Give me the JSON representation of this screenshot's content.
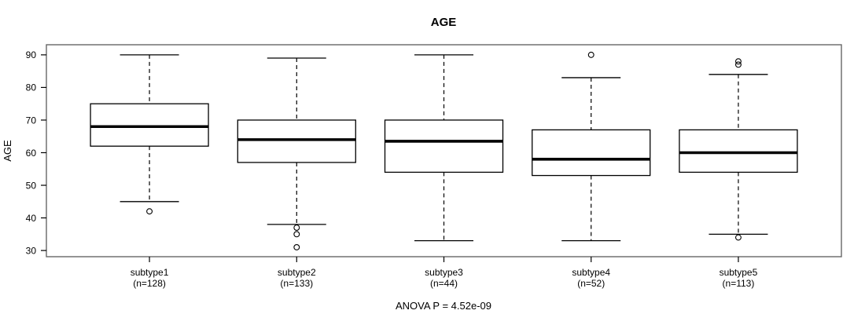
{
  "chart_data": {
    "type": "boxplot",
    "title": "AGE",
    "ylabel": "AGE",
    "xlabel": "",
    "annotation": "ANOVA P = 4.52e-09",
    "ylim": [
      28.1,
      93.1
    ],
    "yticks": [
      30,
      40,
      50,
      60,
      70,
      80,
      90
    ],
    "grid": false,
    "legend": "none",
    "colors": {
      "background": "#ffffff",
      "plot_border": "#666666",
      "box_stroke": "#000000",
      "box_fill": "#ffffff",
      "median": "#000000",
      "whisker": "#000000",
      "outlier": "#000000",
      "text": "#000000"
    },
    "groups": [
      {
        "label": "subtype1",
        "sublabel": "(n=128)",
        "n": 128,
        "whisker_low": 45,
        "q1": 62,
        "median": 68,
        "q3": 75,
        "whisker_high": 90,
        "outliers": [
          42
        ]
      },
      {
        "label": "subtype2",
        "sublabel": "(n=133)",
        "n": 133,
        "whisker_low": 38,
        "q1": 57,
        "median": 64,
        "q3": 70,
        "whisker_high": 89,
        "outliers": [
          37,
          35,
          31
        ]
      },
      {
        "label": "subtype3",
        "sublabel": "(n=44)",
        "n": 44,
        "whisker_low": 33,
        "q1": 54,
        "median": 63.5,
        "q3": 70,
        "whisker_high": 90,
        "outliers": []
      },
      {
        "label": "subtype4",
        "sublabel": "(n=52)",
        "n": 52,
        "whisker_low": 33,
        "q1": 53,
        "median": 58,
        "q3": 67,
        "whisker_high": 83,
        "outliers": [
          90
        ]
      },
      {
        "label": "subtype5",
        "sublabel": "(n=113)",
        "n": 113,
        "whisker_low": 35,
        "q1": 54,
        "median": 60,
        "q3": 67,
        "whisker_high": 84,
        "outliers": [
          88,
          87,
          34
        ]
      }
    ]
  }
}
